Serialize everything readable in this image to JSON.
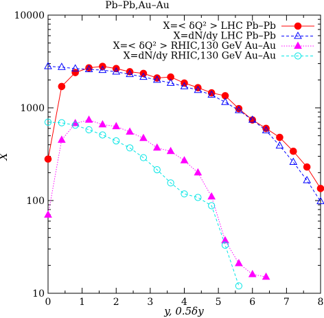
{
  "chart_data": {
    "type": "line",
    "title": "Pb–Pb,Au–Au",
    "xlabel": "y, 0.5δy",
    "ylabel": "X",
    "xlim": [
      0,
      8
    ],
    "ylim": [
      10,
      10000
    ],
    "yscale": "log",
    "x_ticks": [
      "0",
      "1",
      "2",
      "3",
      "4",
      "5",
      "6",
      "7",
      "8"
    ],
    "y_ticks": [
      "10",
      "100",
      "1000",
      "10000"
    ],
    "legend_position": "top-right",
    "series": [
      {
        "name": "X=< δQ² > LHC Pb–Pb",
        "color": "#ff0000",
        "marker": "filled-circle",
        "line": "solid",
        "x": [
          0,
          0.4,
          0.8,
          1.2,
          1.6,
          2.0,
          2.4,
          2.8,
          3.2,
          3.6,
          4.0,
          4.4,
          4.8,
          5.2,
          5.6,
          6.0,
          6.4,
          6.8,
          7.2,
          7.6,
          8.0
        ],
        "y": [
          280,
          1700,
          2400,
          2700,
          2800,
          2650,
          2450,
          2350,
          2100,
          2150,
          1850,
          1650,
          1450,
          1350,
          980,
          740,
          600,
          480,
          340,
          230,
          135
        ]
      },
      {
        "name": "X=dN/dy LHC Pb–Pb",
        "color": "#0000ff",
        "marker": "open-triangle",
        "line": "dashed",
        "x": [
          0,
          0.4,
          0.8,
          1.2,
          1.6,
          2.0,
          2.4,
          2.8,
          3.2,
          3.6,
          4.0,
          4.4,
          4.8,
          5.2,
          5.6,
          6.0,
          6.4,
          6.8,
          7.2,
          7.6,
          8.0
        ],
        "y": [
          2800,
          2750,
          2650,
          2600,
          2550,
          2450,
          2300,
          2150,
          2000,
          1850,
          1700,
          1550,
          1380,
          1150,
          940,
          740,
          570,
          390,
          260,
          165,
          98
        ]
      },
      {
        "name": "X=< δQ² > RHIC,130 GeV Au–Au",
        "color": "#ff00ff",
        "marker": "filled-triangle",
        "line": "dotted",
        "x": [
          0,
          0.4,
          0.8,
          1.2,
          1.6,
          2.0,
          2.4,
          2.8,
          3.2,
          3.6,
          4.0,
          4.4,
          4.8,
          5.2,
          5.6,
          6.0,
          6.4
        ],
        "y": [
          70,
          450,
          680,
          740,
          660,
          630,
          550,
          470,
          370,
          340,
          270,
          200,
          110,
          37,
          21,
          16,
          15
        ]
      },
      {
        "name": "X=dN/dy RHIC,130 GeV Au–Au",
        "color": "#00e5e5",
        "marker": "open-circle",
        "line": "dashed",
        "x": [
          0,
          0.4,
          0.8,
          1.2,
          1.6,
          2.0,
          2.4,
          2.8,
          3.2,
          3.6,
          4.0,
          4.4,
          4.8,
          5.2,
          5.6
        ],
        "y": [
          700,
          690,
          650,
          580,
          510,
          440,
          370,
          290,
          215,
          155,
          118,
          108,
          88,
          33,
          12
        ]
      }
    ]
  }
}
